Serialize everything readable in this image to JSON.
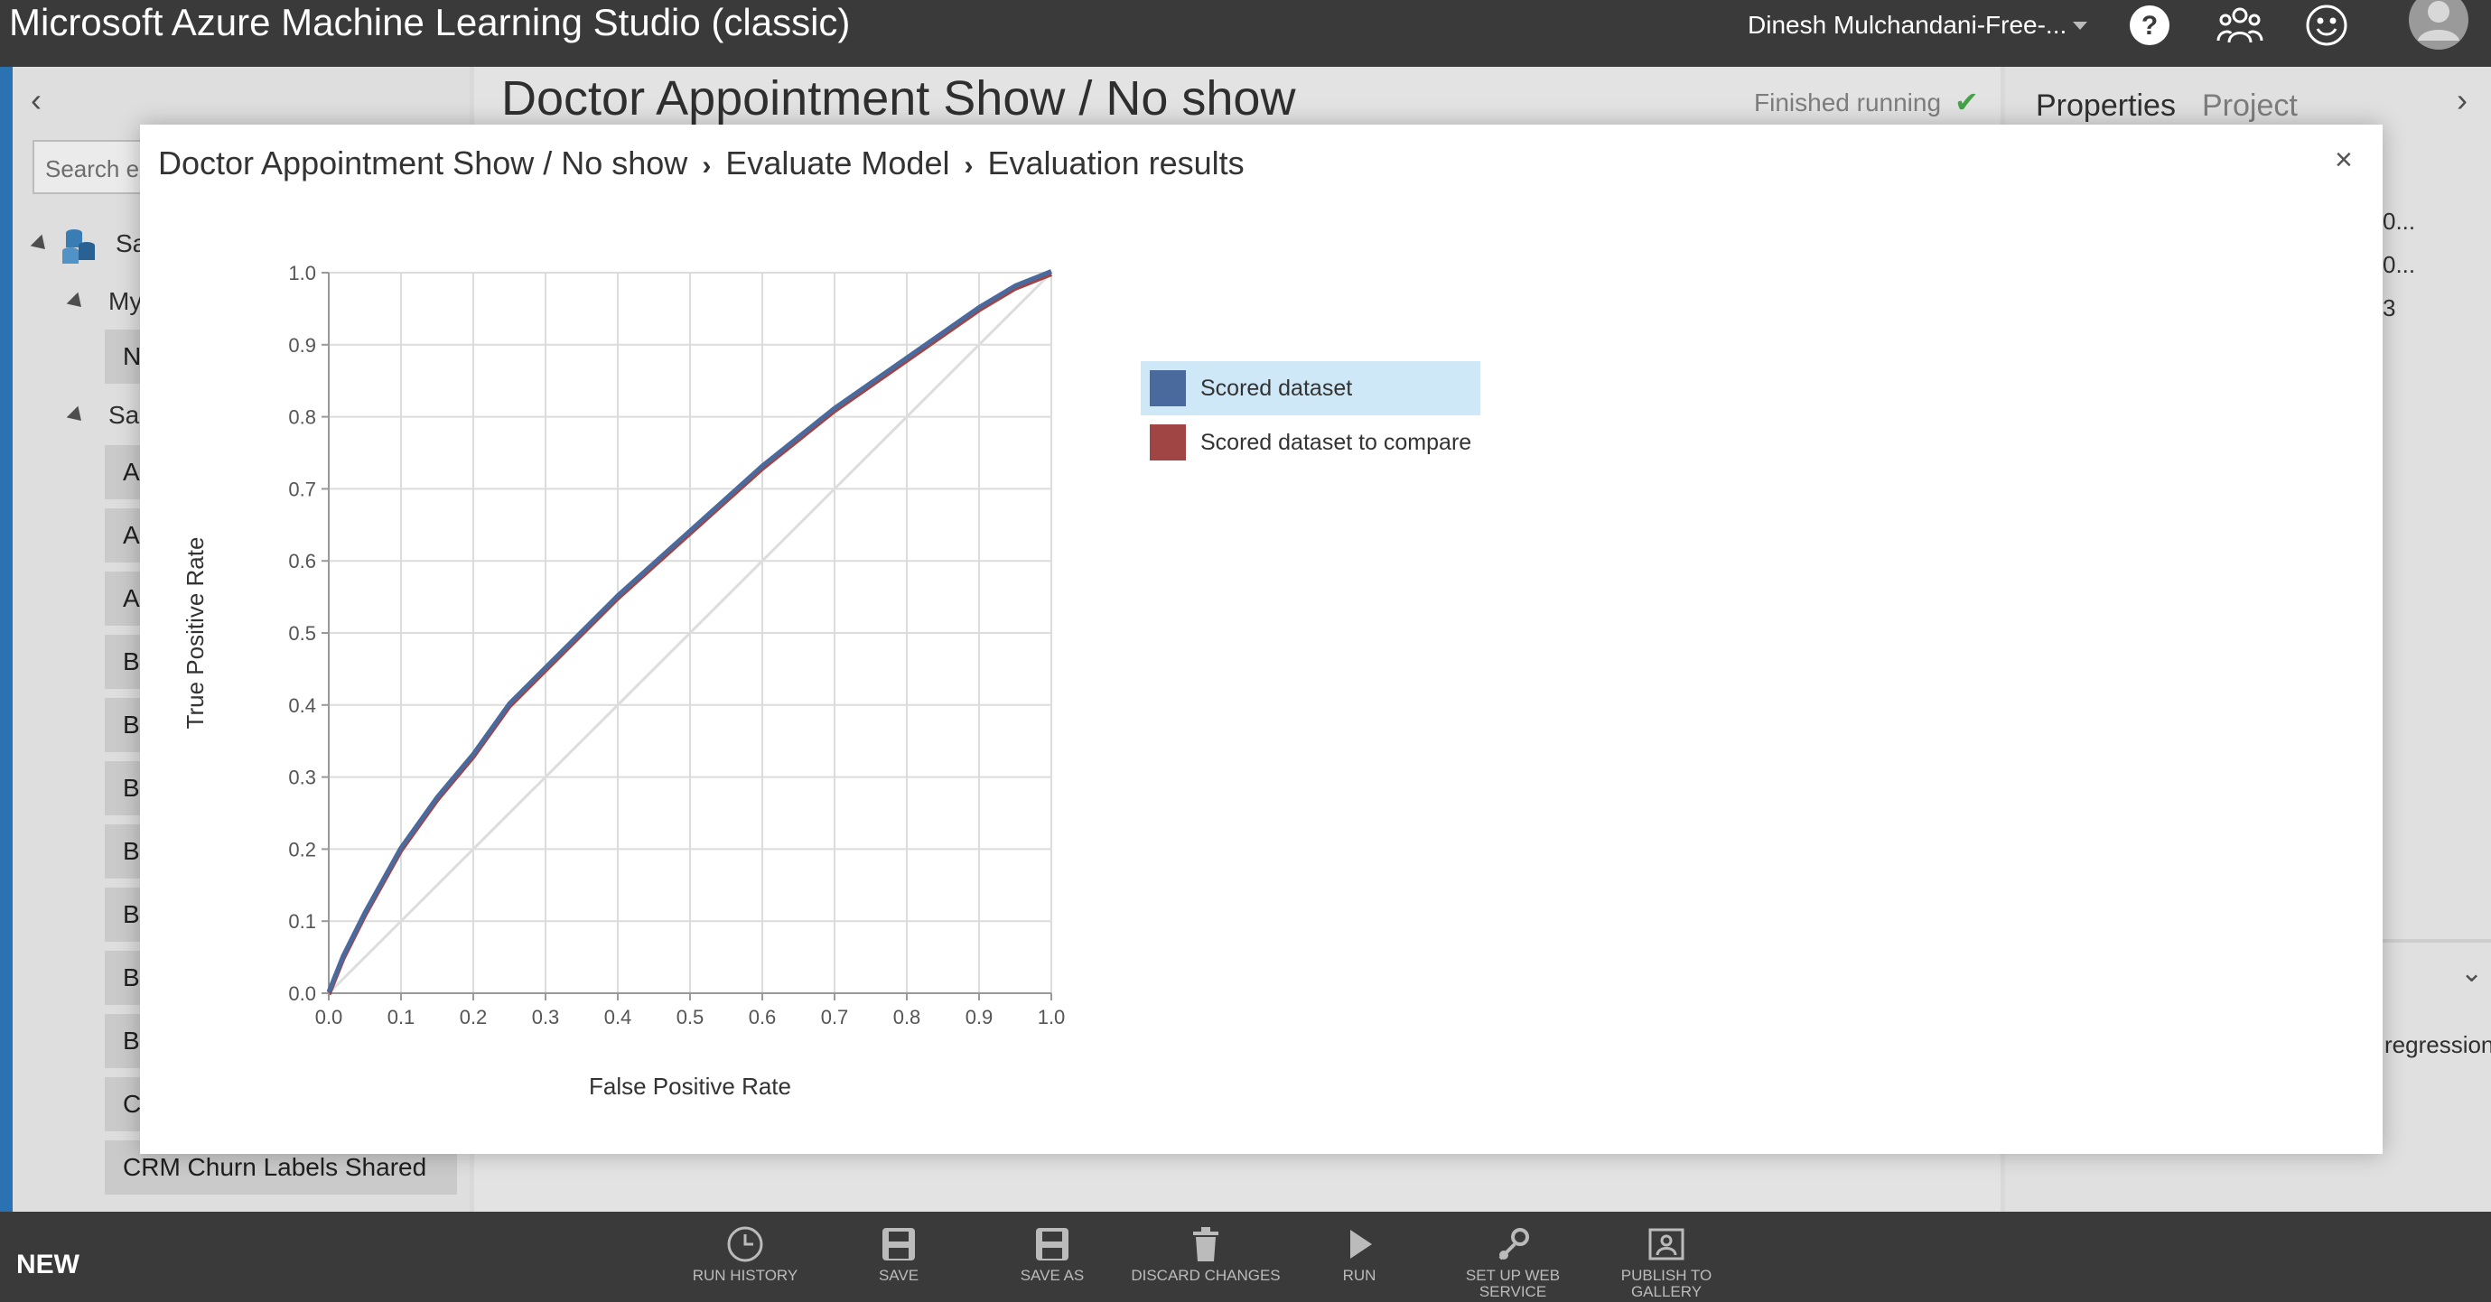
{
  "app": {
    "title": "Microsoft Azure Machine Learning Studio (classic)",
    "user": "Dinesh Mulchandani-Free-...",
    "icons": [
      "help-icon",
      "community-icon",
      "feedback-smiley-icon",
      "avatar-icon"
    ]
  },
  "left_panel": {
    "search_placeholder": "Search ex",
    "tree": {
      "root": "Sa",
      "group1": "My",
      "group1_items": [
        "N"
      ],
      "group2": "Sa",
      "group2_items": [
        "A",
        "A",
        "A",
        "B",
        "B",
        "B",
        "Ba",
        "B",
        "B",
        "B",
        "C",
        "CRM Churn Labels Shared"
      ]
    }
  },
  "experiment": {
    "title": "Doctor Appointment Show / No show",
    "status": "Finished running"
  },
  "right_panel": {
    "tabs": [
      "Properties",
      "Project"
    ],
    "partial_lines": [
      "0...",
      "0...",
      "3"
    ],
    "partial_text": "regression"
  },
  "toolbar": {
    "new_label": "NEW",
    "buttons": [
      {
        "label": "RUN HISTORY",
        "icon": "clock-icon"
      },
      {
        "label": "SAVE",
        "icon": "save-icon"
      },
      {
        "label": "SAVE AS",
        "icon": "save-as-icon"
      },
      {
        "label": "DISCARD CHANGES",
        "icon": "trash-icon"
      },
      {
        "label": "RUN",
        "icon": "play-icon"
      },
      {
        "label": "SET UP WEB SERVICE",
        "icon": "web-service-icon"
      },
      {
        "label": "PUBLISH TO GALLERY",
        "icon": "gallery-icon"
      }
    ]
  },
  "modal": {
    "breadcrumb": [
      "Doctor Appointment Show / No show",
      "Evaluate Model",
      "Evaluation results"
    ],
    "close": "×"
  },
  "colors": {
    "topbar": "#3a3a3a",
    "series1": "#4a6a9e",
    "series2": "#a04444",
    "legend_highlight": "#cfe8f8"
  },
  "chart_data": {
    "type": "line",
    "xlabel": "False Positive Rate",
    "ylabel": "True Positive Rate",
    "xlim": [
      0,
      1
    ],
    "ylim": [
      0,
      1
    ],
    "xticks": [
      "0.0",
      "0.1",
      "0.2",
      "0.3",
      "0.4",
      "0.5",
      "0.6",
      "0.7",
      "0.8",
      "0.9",
      "1.0"
    ],
    "yticks": [
      "0.0",
      "0.1",
      "0.2",
      "0.3",
      "0.4",
      "0.5",
      "0.6",
      "0.7",
      "0.8",
      "0.9",
      "1.0"
    ],
    "grid": true,
    "legend_position": "right",
    "diagonal_reference": true,
    "series": [
      {
        "name": "Scored dataset",
        "x": [
          0,
          0.02,
          0.05,
          0.1,
          0.15,
          0.2,
          0.25,
          0.3,
          0.4,
          0.5,
          0.6,
          0.7,
          0.8,
          0.9,
          0.95,
          1.0
        ],
        "y": [
          0,
          0.05,
          0.11,
          0.2,
          0.27,
          0.33,
          0.4,
          0.45,
          0.55,
          0.64,
          0.73,
          0.81,
          0.88,
          0.95,
          0.98,
          1.0
        ]
      },
      {
        "name": "Scored dataset to compare",
        "x": [
          0,
          0.02,
          0.05,
          0.1,
          0.15,
          0.2,
          0.25,
          0.3,
          0.4,
          0.5,
          0.6,
          0.7,
          0.8,
          0.9,
          0.95,
          1.0
        ],
        "y": [
          0,
          0.05,
          0.11,
          0.2,
          0.27,
          0.33,
          0.4,
          0.45,
          0.55,
          0.64,
          0.73,
          0.81,
          0.88,
          0.95,
          0.98,
          1.0
        ]
      }
    ]
  }
}
